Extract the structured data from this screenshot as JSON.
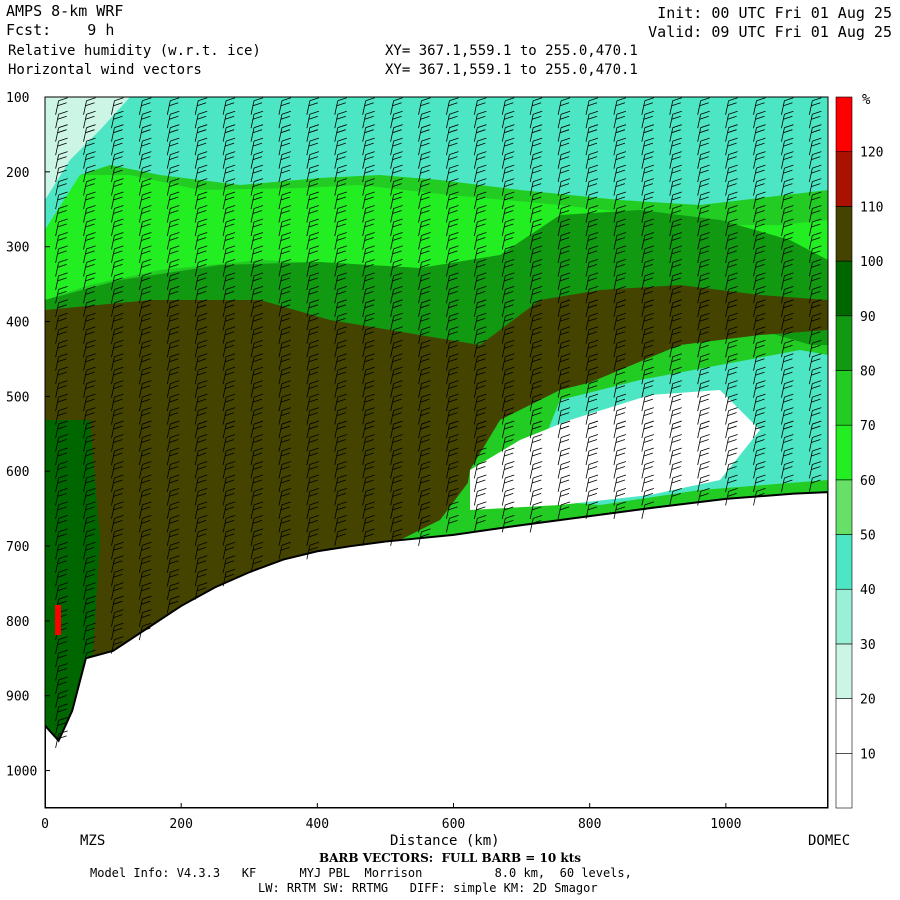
{
  "header": {
    "model": "AMPS 8-km WRF",
    "fcst": "Fcst:    9 h",
    "field1": "Relative humidity (w.r.t. ice)",
    "field2": "Horizontal wind vectors",
    "init": "Init: 00 UTC Fri 01 Aug 25",
    "valid": "Valid: 09 UTC Fri 01 Aug 25",
    "xy1": "XY= 367.1,559.1 to 255.0,470.1",
    "xy2": "XY= 367.1,559.1 to 255.0,470.1"
  },
  "chart_data": {
    "type": "heatmap",
    "xlabel": "Distance (km)",
    "ylabel": "",
    "xlim": [
      0,
      1150
    ],
    "ylim": [
      1050,
      100
    ],
    "x_ticks": [
      0,
      200,
      400,
      600,
      800,
      1000
    ],
    "y_ticks": [
      100,
      200,
      300,
      400,
      500,
      600,
      700,
      800,
      900,
      1000
    ],
    "endpoint_labels": {
      "left": "MZS",
      "right": "DOMEC"
    },
    "colorbar": {
      "unit": "%",
      "levels": [
        10,
        20,
        30,
        40,
        50,
        60,
        70,
        80,
        90,
        100,
        110,
        120
      ],
      "colors": [
        "#ffffff",
        "#ffffff",
        "#ccf5e6",
        "#99f0d6",
        "#4de6c4",
        "#66e066",
        "#22ee22",
        "#22cc22",
        "#119911",
        "#006600",
        "#444400",
        "#aa1100",
        "#ff0000"
      ]
    },
    "terrain_surface_hpa": [
      {
        "x": 0,
        "p": 940
      },
      {
        "x": 20,
        "p": 960
      },
      {
        "x": 40,
        "p": 920
      },
      {
        "x": 60,
        "p": 850
      },
      {
        "x": 100,
        "p": 840
      },
      {
        "x": 150,
        "p": 810
      },
      {
        "x": 200,
        "p": 780
      },
      {
        "x": 250,
        "p": 755
      },
      {
        "x": 300,
        "p": 735
      },
      {
        "x": 350,
        "p": 718
      },
      {
        "x": 400,
        "p": 707
      },
      {
        "x": 450,
        "p": 700
      },
      {
        "x": 500,
        "p": 694
      },
      {
        "x": 600,
        "p": 685
      },
      {
        "x": 700,
        "p": 672
      },
      {
        "x": 800,
        "p": 660
      },
      {
        "x": 900,
        "p": 648
      },
      {
        "x": 1000,
        "p": 637
      },
      {
        "x": 1100,
        "p": 630
      },
      {
        "x": 1150,
        "p": 628
      }
    ],
    "wind_barbs": "Horizontal wind vectors",
    "barb_note": "BARB VECTORS:  FULL BARB = 10 kts"
  },
  "footer": {
    "barb": "BARB VECTORS:  FULL BARB = 10 kts",
    "model_info": "Model Info: V4.3.3   KF      MYJ PBL  Morrison          8.0 km,  60 levels,",
    "physics": "LW: RRTM SW: RRTMG   DIFF: simple KM: 2D Smagor"
  }
}
